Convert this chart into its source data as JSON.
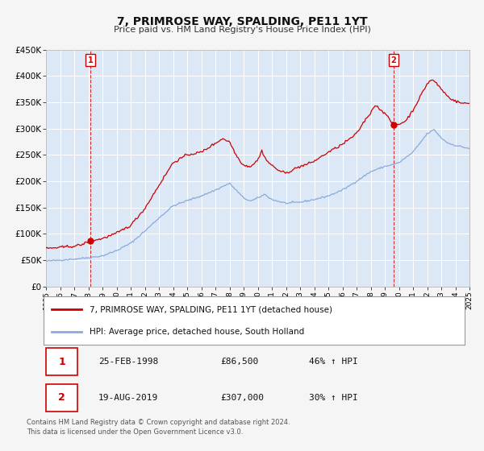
{
  "title": "7, PRIMROSE WAY, SPALDING, PE11 1YT",
  "subtitle": "Price paid vs. HM Land Registry's House Price Index (HPI)",
  "background_color": "#f5f5f5",
  "plot_bg_color": "#dce8f5",
  "grid_color": "#ffffff",
  "red_line_color": "#cc0000",
  "blue_line_color": "#88aadd",
  "sale1_year": 1998.15,
  "sale1_price": 86500,
  "sale2_year": 2019.63,
  "sale2_price": 307000,
  "xmin": 1995,
  "xmax": 2025,
  "ymin": 0,
  "ymax": 450000,
  "yticks": [
    0,
    50000,
    100000,
    150000,
    200000,
    250000,
    300000,
    350000,
    400000,
    450000
  ],
  "ytick_labels": [
    "£0",
    "£50K",
    "£100K",
    "£150K",
    "£200K",
    "£250K",
    "£300K",
    "£350K",
    "£400K",
    "£450K"
  ],
  "legend_line1": "7, PRIMROSE WAY, SPALDING, PE11 1YT (detached house)",
  "legend_line2": "HPI: Average price, detached house, South Holland",
  "label1_date": "25-FEB-1998",
  "label1_price": "£86,500",
  "label1_hpi": "46% ↑ HPI",
  "label2_date": "19-AUG-2019",
  "label2_price": "£307,000",
  "label2_hpi": "30% ↑ HPI",
  "footer1": "Contains HM Land Registry data © Crown copyright and database right 2024.",
  "footer2": "This data is licensed under the Open Government Licence v3.0."
}
